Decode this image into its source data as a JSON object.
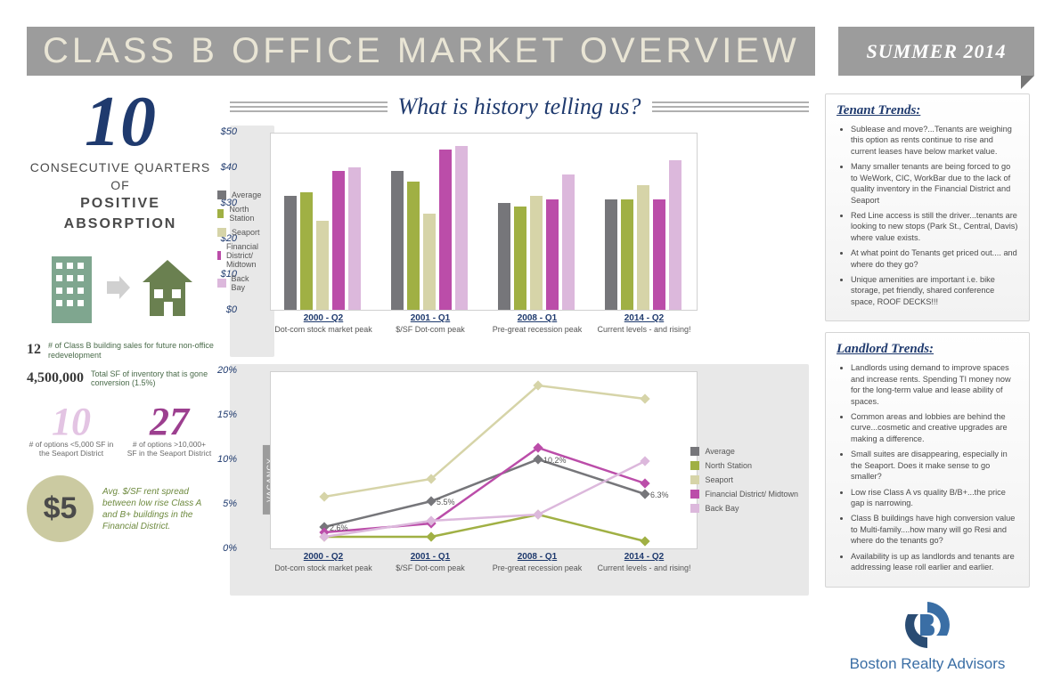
{
  "header": {
    "title": "CLASS B OFFICE MARKET OVERVIEW",
    "date": "SUMMER 2014"
  },
  "left": {
    "big_number": "10",
    "big_caption_1": "CONSECUTIVE QUARTERS OF",
    "big_caption_2": "POSITIVE ABSORPTION",
    "stat_sales_num": "12",
    "stat_sales_text": "# of Class B building sales for future non-office redevelopment",
    "stat_sf_num": "4,500,000",
    "stat_sf_text": "Total SF of inventory that is gone conversion (1.5%)",
    "opt10_num": "10",
    "opt10_text": "# of options <5,000 SF in the Seaport District",
    "opt27_num": "27",
    "opt27_text": "# of options >10,000+ SF in the Seaport District",
    "dollar_num": "$5",
    "dollar_text": "Avg. $/SF rent spread between low rise Class A and B+ buildings in the Financial District."
  },
  "charts": {
    "title": "What is history telling us?",
    "series_colors": {
      "Average": "#76767a",
      "North Station": "#a0b044",
      "Seaport": "#d6d4a8",
      "Financial District/ Midtown": "#bb4da9",
      "Back Bay": "#dcb8dc"
    },
    "legend_order": [
      "Average",
      "North Station",
      "Seaport",
      "Financial District/ Midtown",
      "Back Bay"
    ],
    "bar": {
      "y_label": "ASKING RATE",
      "y_max": 50,
      "y_ticks": [
        "$0",
        "$10",
        "$20",
        "$30",
        "$40",
        "$50"
      ],
      "x_categories": [
        {
          "quarter": "2000 - Q2",
          "desc": "Dot-com stock market peak"
        },
        {
          "quarter": "2001 - Q1",
          "desc": "$/SF Dot-com peak"
        },
        {
          "quarter": "2008 - Q1",
          "desc": "Pre-great recession peak"
        },
        {
          "quarter": "2014 - Q2",
          "desc": "Current levels - and rising!"
        }
      ],
      "values": {
        "Average": [
          32,
          39,
          30,
          31
        ],
        "North Station": [
          33,
          36,
          29,
          31
        ],
        "Seaport": [
          25,
          27,
          32,
          35
        ],
        "Financial District/ Midtown": [
          39,
          45,
          31,
          31
        ],
        "Back Bay": [
          40,
          46,
          38,
          42
        ]
      }
    },
    "line": {
      "y_label": "VACANCY",
      "y_max": 20,
      "y_ticks": [
        "0%",
        "5%",
        "10%",
        "15%",
        "20%"
      ],
      "data_labels": [
        {
          "x": 0,
          "y": 2.6,
          "text": "2.6%"
        },
        {
          "x": 1,
          "y": 5.5,
          "text": "5.5%"
        },
        {
          "x": 2,
          "y": 10.2,
          "text": "10.2%"
        },
        {
          "x": 3,
          "y": 6.3,
          "text": "6.3%"
        }
      ],
      "values": {
        "Average": [
          2.6,
          5.5,
          10.2,
          6.3
        ],
        "North Station": [
          1.5,
          1.5,
          4.0,
          1.0
        ],
        "Seaport": [
          6.0,
          8.0,
          18.5,
          17.0
        ],
        "Financial District/ Midtown": [
          2.0,
          3.0,
          11.5,
          7.5
        ],
        "Back Bay": [
          1.5,
          3.3,
          4.0,
          10.0
        ]
      }
    }
  },
  "tenant_trends": {
    "title": "Tenant Trends:",
    "items": [
      "Sublease and move?...Tenants are weighing this option as rents continue to rise and current leases have below market value.",
      "Many smaller tenants are being forced to go to WeWork, CIC, WorkBar due to the lack of quality inventory in the Financial District and Seaport",
      "Red Line access is still the driver...tenants are looking to new stops (Park St., Central, Davis) where value exists.",
      "At what point do Tenants get priced out.... and where do they go?",
      "Unique amenities are important i.e. bike storage, pet friendly, shared conference space, ROOF DECKS!!!"
    ]
  },
  "landlord_trends": {
    "title": "Landlord Trends:",
    "items": [
      "Landlords using demand to improve spaces and increase rents. Spending TI money now for the long-term value and lease ability of spaces.",
      "Common areas and lobbies are behind the curve...cosmetic and creative upgrades are making a difference.",
      "Small suites are disappearing, especially in the Seaport. Does it make sense to go smaller?",
      "Low rise Class A vs quality B/B+...the price gap is narrowing.",
      "Class B buildings have high conversion value to Multi-family....how many will go Resi and where do the tenants go?",
      "Availability is up as landlords and tenants are addressing lease roll earlier and earlier."
    ]
  },
  "logo_text": "Boston Realty Advisors"
}
